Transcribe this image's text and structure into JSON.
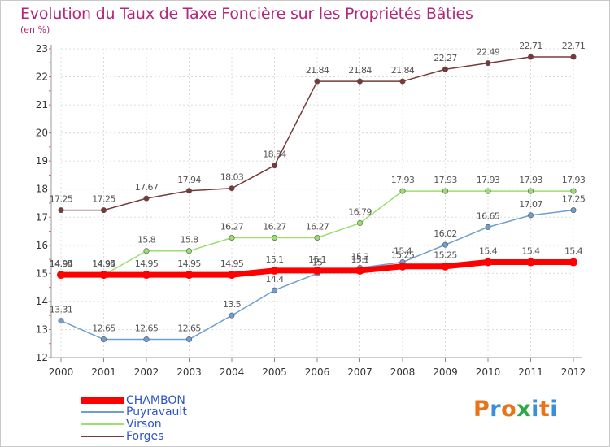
{
  "title": "Evolution du Taux de Taxe Foncière sur les Propriétés Bâties",
  "subtitle": "(en %)",
  "logo": {
    "text": "Proxiti",
    "colors": [
      "#e8741a",
      "#3a8fd8",
      "#e8741a",
      "#2ea84a",
      "#3a8fd8",
      "#e8741a",
      "#3a8fd8"
    ]
  },
  "chart_data": {
    "type": "line",
    "x": [
      "2000",
      "2001",
      "2002",
      "2003",
      "2004",
      "2005",
      "2006",
      "2007",
      "2008",
      "2009",
      "2010",
      "2011",
      "2012"
    ],
    "ylim": [
      12,
      23
    ],
    "yticks": [
      "12",
      "13",
      "14",
      "15",
      "16",
      "17",
      "18",
      "19",
      "20",
      "21",
      "22",
      "23"
    ],
    "grid": true,
    "legend_position": "bottom-left",
    "series": [
      {
        "name": "CHAMBON",
        "color": "#ff0000",
        "values": [
          14.95,
          14.95,
          14.95,
          14.95,
          14.95,
          15.1,
          15.1,
          15.1,
          15.25,
          15.25,
          15.4,
          15.4,
          15.4
        ],
        "labels": [
          "14.95",
          "14.95",
          "14.95",
          "14.95",
          "14.95",
          "15.1",
          "15.1",
          "15.1",
          "15.25",
          "15.25",
          "15.4",
          "15.4",
          "15.4"
        ]
      },
      {
        "name": "Puyravault",
        "color": "#6f9ed1",
        "values": [
          13.31,
          12.65,
          12.65,
          12.65,
          13.5,
          14.4,
          15,
          15.2,
          15.4,
          16.02,
          16.65,
          17.07,
          17.25
        ],
        "labels": [
          "13.31",
          "12.65",
          "12.65",
          "12.65",
          "13.5",
          "14.4",
          "15",
          "15.2",
          "15.4",
          "16.02",
          "16.65",
          "17.07",
          "17.25"
        ]
      },
      {
        "name": "Virson",
        "color": "#9bdf6e",
        "values": [
          14.94,
          14.94,
          15.8,
          15.8,
          16.27,
          16.27,
          16.27,
          16.79,
          17.93,
          17.93,
          17.93,
          17.93,
          17.93
        ],
        "labels": [
          "14.94",
          "14.94",
          "15.8",
          "15.8",
          "16.27",
          "16.27",
          "16.27",
          "16.79",
          "17.93",
          "17.93",
          "17.93",
          "17.93",
          "17.93"
        ]
      },
      {
        "name": "Forges",
        "color": "#7a3939",
        "values": [
          17.25,
          17.25,
          17.67,
          17.94,
          18.03,
          18.84,
          21.84,
          21.84,
          21.84,
          22.27,
          22.49,
          22.71,
          22.71
        ],
        "labels": [
          "17.25",
          "17.25",
          "17.67",
          "17.94",
          "18.03",
          "18.84",
          "21.84",
          "21.84",
          "21.84",
          "22.27",
          "22.49",
          "22.71",
          "22.71"
        ]
      }
    ]
  }
}
